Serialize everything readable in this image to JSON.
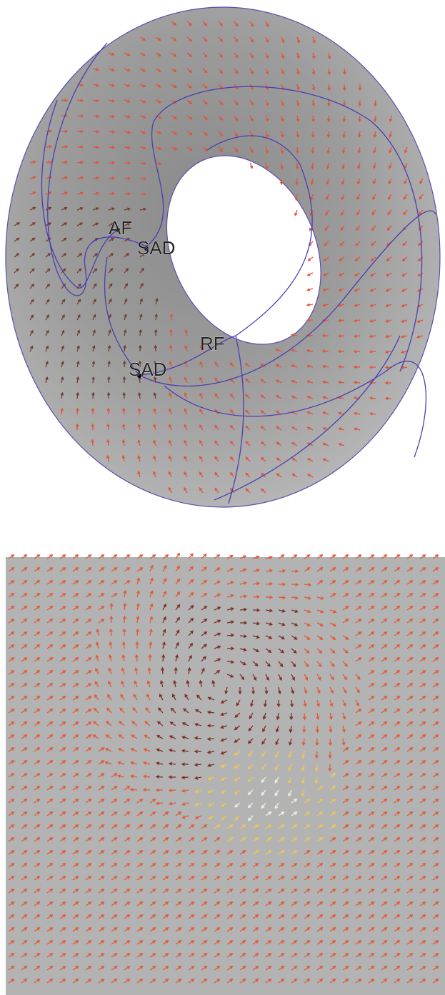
{
  "labels": [
    "AF",
    "SAD",
    "RF",
    "SAD"
  ]
}
